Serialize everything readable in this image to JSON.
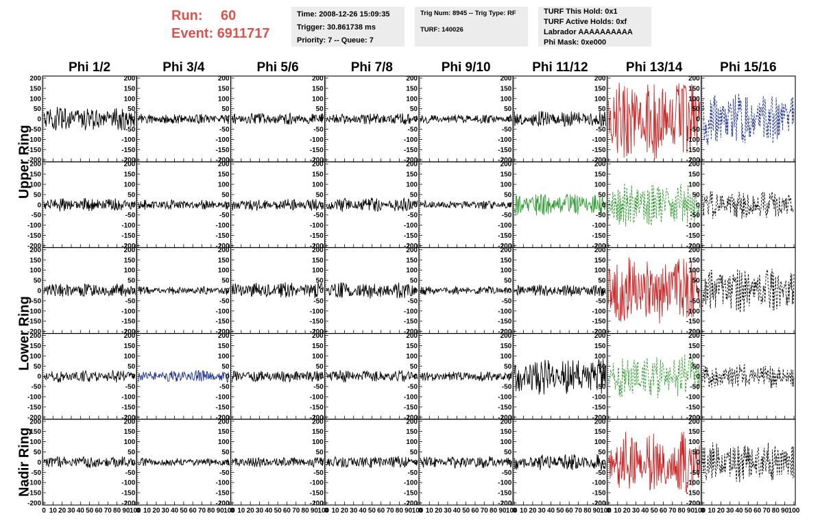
{
  "header": {
    "run_label": "Run:",
    "run_value": "60",
    "event_label": "Event:",
    "event_value": "6911717",
    "time": "Time: 2008-12-26 15:09:35",
    "trigger": "Trigger: 30.861738 ms",
    "priority": "Priority: 7 -- Queue: 7",
    "trig_num": "Trig Num: 8945 -- Trig Type: RF",
    "turf": "TURF: 140026",
    "turf_this_hold": "TURF This Hold: 0x1",
    "turf_active_holds": "TURF Active Holds: 0xf",
    "labrador": "Labrador AAAAAAAAAA",
    "phi_mask": "Phi Mask: 0xe000"
  },
  "colors": {
    "accent_red": "#d9534f",
    "red": "#cc2222",
    "green": "#2e9a2e",
    "blue": "#1c2f8f",
    "black": "#000000",
    "panel_bg": "#ececec"
  },
  "chart_data": {
    "type": "line",
    "columns": [
      "Phi 1/2",
      "Phi 3/4",
      "Phi 5/6",
      "Phi 7/8",
      "Phi 9/10",
      "Phi 11/12",
      "Phi 13/14",
      "Phi 15/16"
    ],
    "row_group_labels": [
      "Upper Ring",
      "Lower Ring",
      "Nadir Ring"
    ],
    "ylim": [
      -210,
      210
    ],
    "y_ticks": [
      "200",
      "150",
      "100",
      "50",
      "0",
      "-50",
      "-100",
      "-150",
      "-200"
    ],
    "y_tick_values": [
      200,
      150,
      100,
      50,
      0,
      -50,
      -100,
      -150,
      -200
    ],
    "xlim": [
      0,
      100
    ],
    "x_ticks": [
      "0",
      "10",
      "20",
      "30",
      "40",
      "50",
      "60",
      "70",
      "80",
      "90",
      "100"
    ],
    "x_tick_values": [
      0,
      10,
      20,
      30,
      40,
      50,
      60,
      70,
      80,
      90,
      100
    ],
    "panels": [
      [
        {
          "color": "black",
          "dashed": false,
          "amp": 60
        },
        {
          "color": "black",
          "dashed": false,
          "amp": 25
        },
        {
          "color": "black",
          "dashed": false,
          "amp": 30
        },
        {
          "color": "black",
          "dashed": false,
          "amp": 28
        },
        {
          "color": "black",
          "dashed": false,
          "amp": 22
        },
        {
          "color": "black",
          "dashed": false,
          "amp": 40
        },
        {
          "color": "red",
          "dashed": false,
          "amp": 200
        },
        {
          "color": "blue",
          "dashed": true,
          "amp": 130
        }
      ],
      [
        {
          "color": "black",
          "dashed": false,
          "amp": 35
        },
        {
          "color": "black",
          "dashed": false,
          "amp": 25
        },
        {
          "color": "black",
          "dashed": false,
          "amp": 30
        },
        {
          "color": "black",
          "dashed": false,
          "amp": 35
        },
        {
          "color": "black",
          "dashed": false,
          "amp": 22
        },
        {
          "color": "green",
          "dashed": false,
          "amp": 55
        },
        {
          "color": "green",
          "dashed": true,
          "amp": 110
        },
        {
          "color": "black",
          "dashed": true,
          "amp": 70
        }
      ],
      [
        {
          "color": "black",
          "dashed": false,
          "amp": 35
        },
        {
          "color": "black",
          "dashed": false,
          "amp": 20
        },
        {
          "color": "black",
          "dashed": false,
          "amp": 40
        },
        {
          "color": "black",
          "dashed": false,
          "amp": 40
        },
        {
          "color": "black",
          "dashed": false,
          "amp": 22
        },
        {
          "color": "black",
          "dashed": false,
          "amp": 30
        },
        {
          "color": "red",
          "dashed": false,
          "amp": 170
        },
        {
          "color": "black",
          "dashed": true,
          "amp": 110
        }
      ],
      [
        {
          "color": "black",
          "dashed": false,
          "amp": 30
        },
        {
          "color": "blue",
          "dashed": false,
          "amp": 30
        },
        {
          "color": "black",
          "dashed": false,
          "amp": 30
        },
        {
          "color": "black",
          "dashed": false,
          "amp": 30
        },
        {
          "color": "black",
          "dashed": false,
          "amp": 25
        },
        {
          "color": "black",
          "dashed": false,
          "amp": 90
        },
        {
          "color": "green",
          "dashed": true,
          "amp": 110
        },
        {
          "color": "black",
          "dashed": true,
          "amp": 60
        }
      ],
      [
        {
          "color": "black",
          "dashed": false,
          "amp": 30
        },
        {
          "color": "black",
          "dashed": false,
          "amp": 20
        },
        {
          "color": "black",
          "dashed": false,
          "amp": 25
        },
        {
          "color": "black",
          "dashed": false,
          "amp": 30
        },
        {
          "color": "black",
          "dashed": false,
          "amp": 30
        },
        {
          "color": "black",
          "dashed": false,
          "amp": 40
        },
        {
          "color": "red",
          "dashed": false,
          "amp": 150
        },
        {
          "color": "black",
          "dashed": true,
          "amp": 100
        }
      ]
    ]
  }
}
